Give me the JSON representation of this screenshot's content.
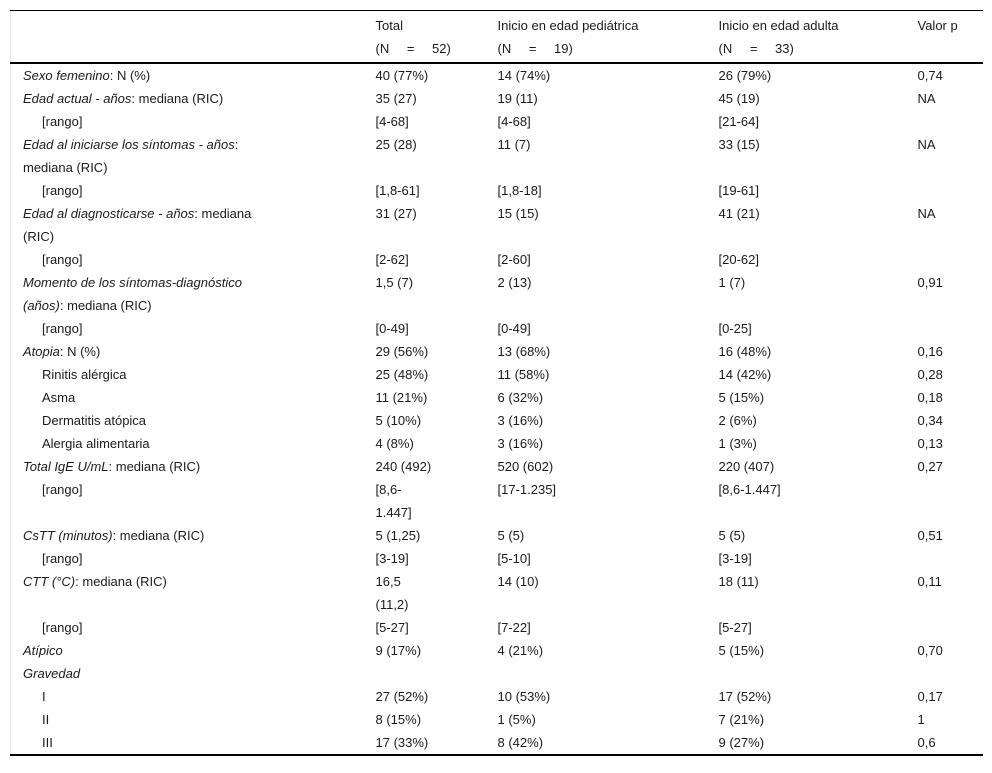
{
  "colors": {
    "background": "#ffffff",
    "text": "#1b1b1b",
    "rule": "#000000",
    "faint_grid": "#e7e7e7"
  },
  "header": {
    "row_label_column": "",
    "columns": [
      {
        "key": "total",
        "title": "Total",
        "n": "(N = 52)"
      },
      {
        "key": "pediatrica",
        "title": "Inicio en edad pediátrica",
        "n": "(N = 19)"
      },
      {
        "key": "adulta",
        "title": "Inicio en edad adulta",
        "n": "(N = 33)"
      },
      {
        "key": "valor-p",
        "title": "Valor p",
        "n": ""
      }
    ]
  },
  "rows": [
    {
      "key": "sexo-femenino",
      "indent": 0,
      "label": [
        [
          {
            "t": "Sexo femenino",
            "i": true
          },
          {
            "t": ": N (%)",
            "i": false
          }
        ]
      ],
      "cells": [
        [
          "40 (77%)"
        ],
        [
          "14 (74%)"
        ],
        [
          "26 (79%)"
        ],
        [
          "0,74"
        ]
      ]
    },
    {
      "key": "edad-actual",
      "indent": 0,
      "label": [
        [
          {
            "t": "Edad actual - años",
            "i": true
          },
          {
            "t": ": mediana (RIC)",
            "i": false
          }
        ]
      ],
      "cells": [
        [
          "35 (27)"
        ],
        [
          "19 (11)"
        ],
        [
          "45 (19)"
        ],
        [
          "NA"
        ]
      ]
    },
    {
      "key": "rango-edad-actual",
      "indent": 1,
      "label": [
        [
          {
            "t": "[rango]",
            "i": false
          }
        ]
      ],
      "cells": [
        [
          "[4-68]"
        ],
        [
          "[4-68]"
        ],
        [
          "[21-64]"
        ],
        []
      ]
    },
    {
      "key": "edad-inicio-sintomas",
      "indent": 0,
      "label": [
        [
          {
            "t": "Edad al iniciarse los síntomas - años",
            "i": true
          },
          {
            "t": ":",
            "i": false
          }
        ],
        [
          {
            "t": "mediana (RIC)",
            "i": false
          }
        ]
      ],
      "cells": [
        [
          "25 (28)"
        ],
        [
          "11 (7)"
        ],
        [
          "33 (15)"
        ],
        [
          "NA"
        ]
      ]
    },
    {
      "key": "rango-inicio-sintomas",
      "indent": 1,
      "label": [
        [
          {
            "t": "[rango]",
            "i": false
          }
        ]
      ],
      "cells": [
        [
          "[1,8-61]"
        ],
        [
          "[1,8-18]"
        ],
        [
          "[19-61]"
        ],
        []
      ]
    },
    {
      "key": "edad-diagnostico",
      "indent": 0,
      "label": [
        [
          {
            "t": "Edad al diagnosticarse - años",
            "i": true
          },
          {
            "t": ": mediana",
            "i": false
          }
        ],
        [
          {
            "t": "(RIC)",
            "i": false
          }
        ]
      ],
      "cells": [
        [
          "31 (27)"
        ],
        [
          "15 (15)"
        ],
        [
          "41 (21)"
        ],
        [
          "NA"
        ]
      ]
    },
    {
      "key": "rango-diagnostico",
      "indent": 1,
      "label": [
        [
          {
            "t": "[rango]",
            "i": false
          }
        ]
      ],
      "cells": [
        [
          "[2-62]"
        ],
        [
          "[2-60]"
        ],
        [
          "[20-62]"
        ],
        []
      ]
    },
    {
      "key": "momento-sintomas-diagnostico",
      "indent": 0,
      "label": [
        [
          {
            "t": "Momento de los síntomas-diagnóstico",
            "i": true
          }
        ],
        [
          {
            "t": "(años)",
            "i": true
          },
          {
            "t": ": mediana (RIC)",
            "i": false
          }
        ]
      ],
      "cells": [
        [
          "1,5 (7)"
        ],
        [
          "2 (13)"
        ],
        [
          "1 (7)"
        ],
        [
          "0,91"
        ]
      ]
    },
    {
      "key": "rango-momento",
      "indent": 1,
      "label": [
        [
          {
            "t": "[rango]",
            "i": false
          }
        ]
      ],
      "cells": [
        [
          "[0-49]"
        ],
        [
          "[0-49]"
        ],
        [
          "[0-25]"
        ],
        []
      ]
    },
    {
      "key": "atopia",
      "indent": 0,
      "label": [
        [
          {
            "t": "Atopia",
            "i": true
          },
          {
            "t": ": N (%)",
            "i": false
          }
        ]
      ],
      "cells": [
        [
          "29 (56%)"
        ],
        [
          "13 (68%)"
        ],
        [
          "16 (48%)"
        ],
        [
          "0,16"
        ]
      ]
    },
    {
      "key": "rinitis-alergica",
      "indent": 1,
      "label": [
        [
          {
            "t": "Rinitis alérgica",
            "i": false
          }
        ]
      ],
      "cells": [
        [
          "25 (48%)"
        ],
        [
          "11 (58%)"
        ],
        [
          "14 (42%)"
        ],
        [
          "0,28"
        ]
      ]
    },
    {
      "key": "asma",
      "indent": 1,
      "label": [
        [
          {
            "t": "Asma",
            "i": false
          }
        ]
      ],
      "cells": [
        [
          "11 (21%)"
        ],
        [
          "6 (32%)"
        ],
        [
          "5 (15%)"
        ],
        [
          "0,18"
        ]
      ]
    },
    {
      "key": "dermatitis-atopica",
      "indent": 1,
      "label": [
        [
          {
            "t": "Dermatitis atópica",
            "i": false
          }
        ]
      ],
      "cells": [
        [
          "5 (10%)"
        ],
        [
          "3 (16%)"
        ],
        [
          "2 (6%)"
        ],
        [
          "0,34"
        ]
      ]
    },
    {
      "key": "alergia-alimentaria",
      "indent": 1,
      "label": [
        [
          {
            "t": "Alergia alimentaria",
            "i": false
          }
        ]
      ],
      "cells": [
        [
          "4 (8%)"
        ],
        [
          "3 (16%)"
        ],
        [
          "1 (3%)"
        ],
        [
          "0,13"
        ]
      ]
    },
    {
      "key": "total-ige",
      "indent": 0,
      "label": [
        [
          {
            "t": "Total IgE U/mL",
            "i": true
          },
          {
            "t": ": mediana (RIC)",
            "i": false
          }
        ]
      ],
      "cells": [
        [
          "240 (492)"
        ],
        [
          "520 (602)"
        ],
        [
          "220 (407)"
        ],
        [
          "0,27"
        ]
      ]
    },
    {
      "key": "rango-ige",
      "indent": 1,
      "label": [
        [
          {
            "t": "[rango]",
            "i": false
          }
        ]
      ],
      "cells": [
        [
          "[8,6-",
          "1.447]"
        ],
        [
          "[17-1.235]"
        ],
        [
          "[8,6-1.447]"
        ],
        []
      ]
    },
    {
      "key": "cstt",
      "indent": 0,
      "label": [
        [
          {
            "t": "CsTT (minutos)",
            "i": true
          },
          {
            "t": ": mediana (RIC)",
            "i": false
          }
        ]
      ],
      "cells": [
        [
          "5 (1,25)"
        ],
        [
          "5 (5)"
        ],
        [
          "5 (5)"
        ],
        [
          "0,51"
        ]
      ]
    },
    {
      "key": "rango-cstt",
      "indent": 1,
      "label": [
        [
          {
            "t": "[rango]",
            "i": false
          }
        ]
      ],
      "cells": [
        [
          "[3-19]"
        ],
        [
          "[5-10]"
        ],
        [
          "[3-19]"
        ],
        []
      ]
    },
    {
      "key": "ctt",
      "indent": 0,
      "label": [
        [
          {
            "t": "CTT (°C)",
            "i": true
          },
          {
            "t": ": mediana (RIC)",
            "i": false
          }
        ]
      ],
      "cells": [
        [
          "16,5",
          "(11,2)"
        ],
        [
          "14 (10)"
        ],
        [
          "18 (11)"
        ],
        [
          "0,11"
        ]
      ]
    },
    {
      "key": "rango-ctt",
      "indent": 1,
      "label": [
        [
          {
            "t": "[rango]",
            "i": false
          }
        ]
      ],
      "cells": [
        [
          "[5-27]"
        ],
        [
          "[7-22]"
        ],
        [
          "[5-27]"
        ],
        []
      ]
    },
    {
      "key": "atipico",
      "indent": 0,
      "label": [
        [
          {
            "t": "Atípico",
            "i": true
          }
        ]
      ],
      "cells": [
        [
          "9 (17%)"
        ],
        [
          "4 (21%)"
        ],
        [
          "5 (15%)"
        ],
        [
          "0,70"
        ]
      ]
    },
    {
      "key": "gravedad",
      "indent": 0,
      "label": [
        [
          {
            "t": "Gravedad",
            "i": true
          }
        ]
      ],
      "cells": [
        [],
        [],
        [],
        []
      ]
    },
    {
      "key": "gravedad-i",
      "indent": 1,
      "label": [
        [
          {
            "t": "I",
            "i": false
          }
        ]
      ],
      "cells": [
        [
          "27 (52%)"
        ],
        [
          "10 (53%)"
        ],
        [
          "17 (52%)"
        ],
        [
          "0,17"
        ]
      ]
    },
    {
      "key": "gravedad-ii",
      "indent": 1,
      "label": [
        [
          {
            "t": "II",
            "i": false
          }
        ]
      ],
      "cells": [
        [
          "8 (15%)"
        ],
        [
          "1 (5%)"
        ],
        [
          "7 (21%)"
        ],
        [
          "1"
        ]
      ]
    },
    {
      "key": "gravedad-iii",
      "indent": 1,
      "label": [
        [
          {
            "t": "III",
            "i": false
          }
        ]
      ],
      "cells": [
        [
          "17 (33%)"
        ],
        [
          "8 (42%)"
        ],
        [
          "9 (27%)"
        ],
        [
          "0,6"
        ]
      ]
    }
  ]
}
